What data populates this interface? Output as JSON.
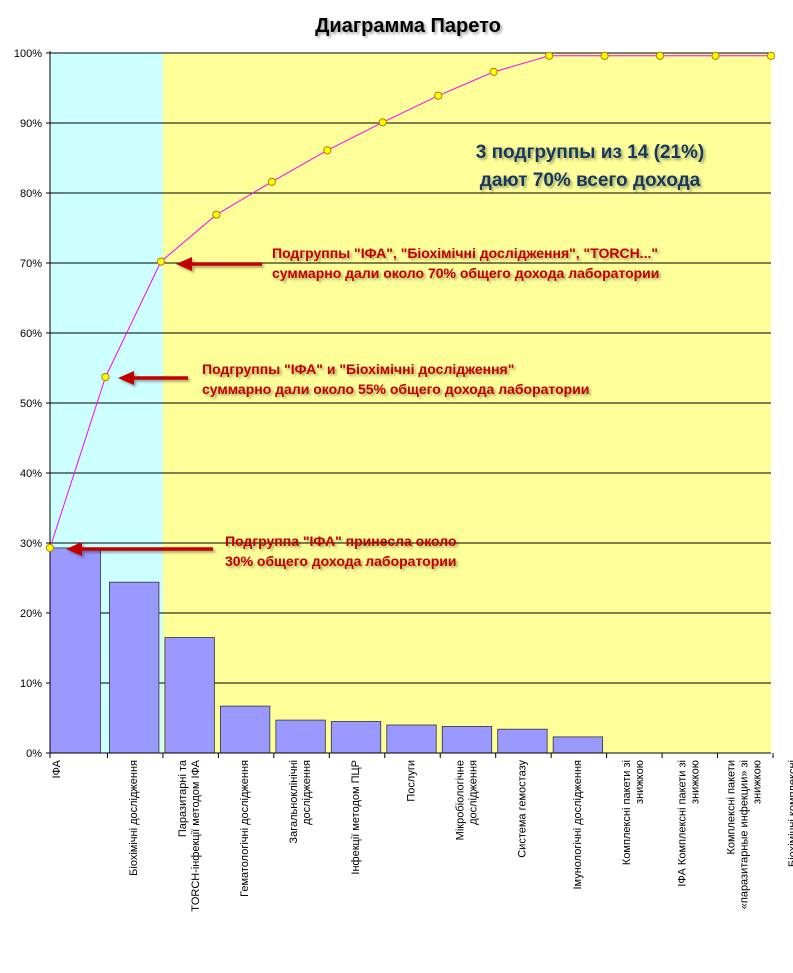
{
  "chart_data": {
    "type": "bar",
    "title": "Диаграмма Парето",
    "xlabel": "",
    "ylabel": "",
    "ylim": [
      0,
      100
    ],
    "y_tick_labels": [
      "0%",
      "10%",
      "20%",
      "30%",
      "40%",
      "50%",
      "60%",
      "70%",
      "80%",
      "90%",
      "100%"
    ],
    "grid": true,
    "categories": [
      "ІФА",
      "Біохімічні дослідження",
      "Паразитарні та TORCH-інфекції методом ІФА",
      "Гематологічні дослідження",
      "Загальноклінічні дослідження",
      "Інфекції методом ПЦР",
      "Послуги",
      "Мікробіологічне дослідження",
      "Система гемостазу",
      "Імунологічні дослідження",
      "Комплексні пакети зі знижкою",
      "ІФА Комплексні пакети зі знижкою",
      "Комплексні пакети «паразитарные инфекции» зі знижкою",
      "Біохімічні комплексні пакети зі знижкою"
    ],
    "series": [
      {
        "values": [
          29.3,
          24.4,
          16.5,
          6.7,
          4.7,
          4.5,
          4.0,
          3.8,
          3.4,
          2.3,
          0,
          0,
          0,
          0
        ],
        "color": "#9999ff"
      },
      {
        "values": [
          29.3,
          53.7,
          70.2,
          76.9,
          81.6,
          86.1,
          90.1,
          93.9,
          97.3,
          99.6,
          99.6,
          99.6,
          99.6,
          99.6
        ],
        "color": "#ff00ff",
        "marker_color": "#ffff00"
      }
    ],
    "background_zones": [
      {
        "from_category": 0,
        "to_category": 2,
        "color": "#ccffff"
      },
      {
        "from_category": 2,
        "to_category": 13,
        "color": "#ffff99"
      }
    ],
    "annotations": [
      {
        "lines": [
          "3 подгруппы из 14 (21%)",
          "дают 70% всего дохода"
        ],
        "color": "#17375e"
      },
      {
        "lines": [
          "Подгруппы \"ІФА\", \"Біохімічні дослідження\", \"TORCH...\"",
          "суммарно дали около 70% общего дохода лаборатории"
        ],
        "color": "#c00000",
        "arrow_to_category": 2
      },
      {
        "lines": [
          "Подгруппы \"ІФА\" и \"Біохімічні дослідження\"",
          "суммарно дали около 55% общего дохода лаборатории"
        ],
        "color": "#c00000",
        "arrow_to_category": 1
      },
      {
        "lines": [
          "Подгруппа \"ІФА\" принесла около",
          "30% общего дохода лаборатории"
        ],
        "color": "#c00000",
        "arrow_to_category": 0
      }
    ]
  }
}
